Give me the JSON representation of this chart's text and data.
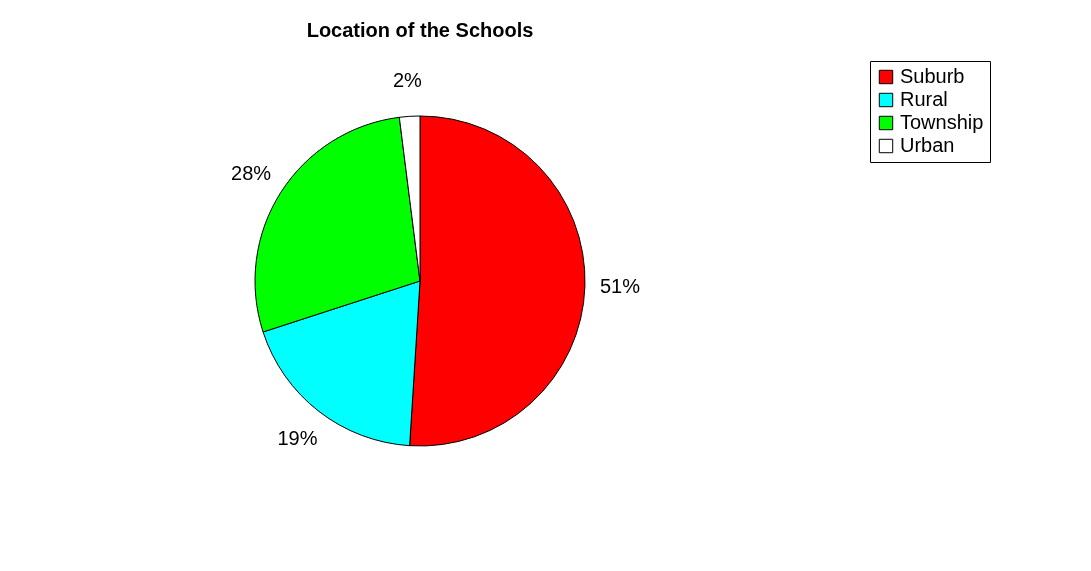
{
  "chart_data": {
    "type": "pie",
    "title": "Location of the Schools",
    "categories": [
      "Suburb",
      "Rural",
      "Township",
      "Urban"
    ],
    "values": [
      51,
      19,
      28,
      2
    ],
    "colors": [
      "#ff0000",
      "#00ffff",
      "#00ff00",
      "#ffffff"
    ],
    "value_labels": [
      "51%",
      "19%",
      "28%",
      "2%"
    ],
    "legend": "right"
  }
}
